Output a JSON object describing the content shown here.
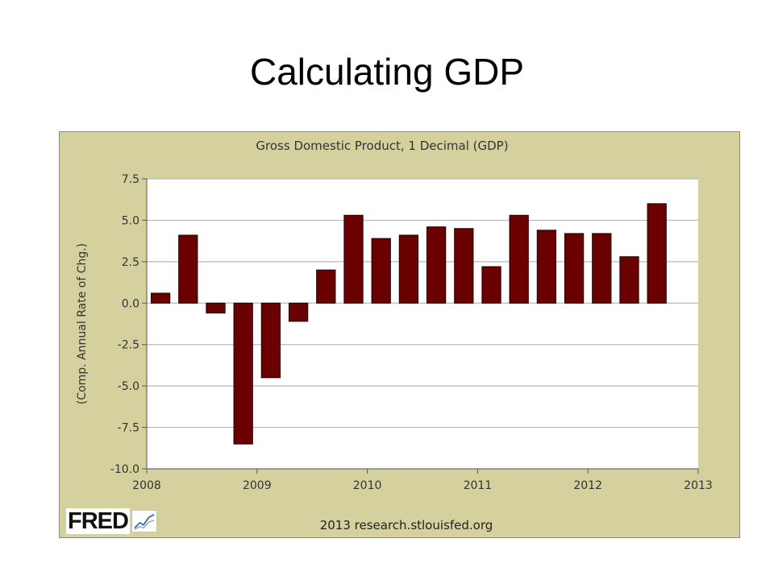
{
  "slide": {
    "title": "Calculating GDP"
  },
  "chart_data": {
    "type": "bar",
    "title": "Gross Domestic Product, 1 Decimal (GDP)",
    "ylabel": "(Comp. Annual Rate of Chg.)",
    "xlabel": "",
    "xlim": [
      2008,
      2013
    ],
    "ylim": [
      -10.0,
      7.5
    ],
    "x_ticks": [
      "2008",
      "2009",
      "2010",
      "2011",
      "2012",
      "2013"
    ],
    "y_ticks": [
      "7.5",
      "5.0",
      "2.5",
      "0.0",
      "-2.5",
      "-5.0",
      "-7.5",
      "-10.0"
    ],
    "x": [
      "2008 Q1",
      "2008 Q2",
      "2008 Q3",
      "2008 Q4",
      "2009 Q1",
      "2009 Q2",
      "2009 Q3",
      "2009 Q4",
      "2010 Q1",
      "2010 Q2",
      "2010 Q3",
      "2010 Q4",
      "2011 Q1",
      "2011 Q2",
      "2011 Q3",
      "2011 Q4",
      "2012 Q1",
      "2012 Q2",
      "2012 Q3"
    ],
    "values": [
      0.6,
      4.1,
      -0.6,
      -8.5,
      -4.5,
      -1.1,
      2.0,
      5.3,
      3.9,
      4.1,
      4.6,
      4.5,
      2.2,
      5.3,
      4.4,
      4.2,
      4.2,
      2.8,
      6.0
    ],
    "bar_color": "#6b0000",
    "grid": true
  },
  "footer": {
    "logo": "FRED",
    "source": "2013 research.stlouisfed.org"
  }
}
